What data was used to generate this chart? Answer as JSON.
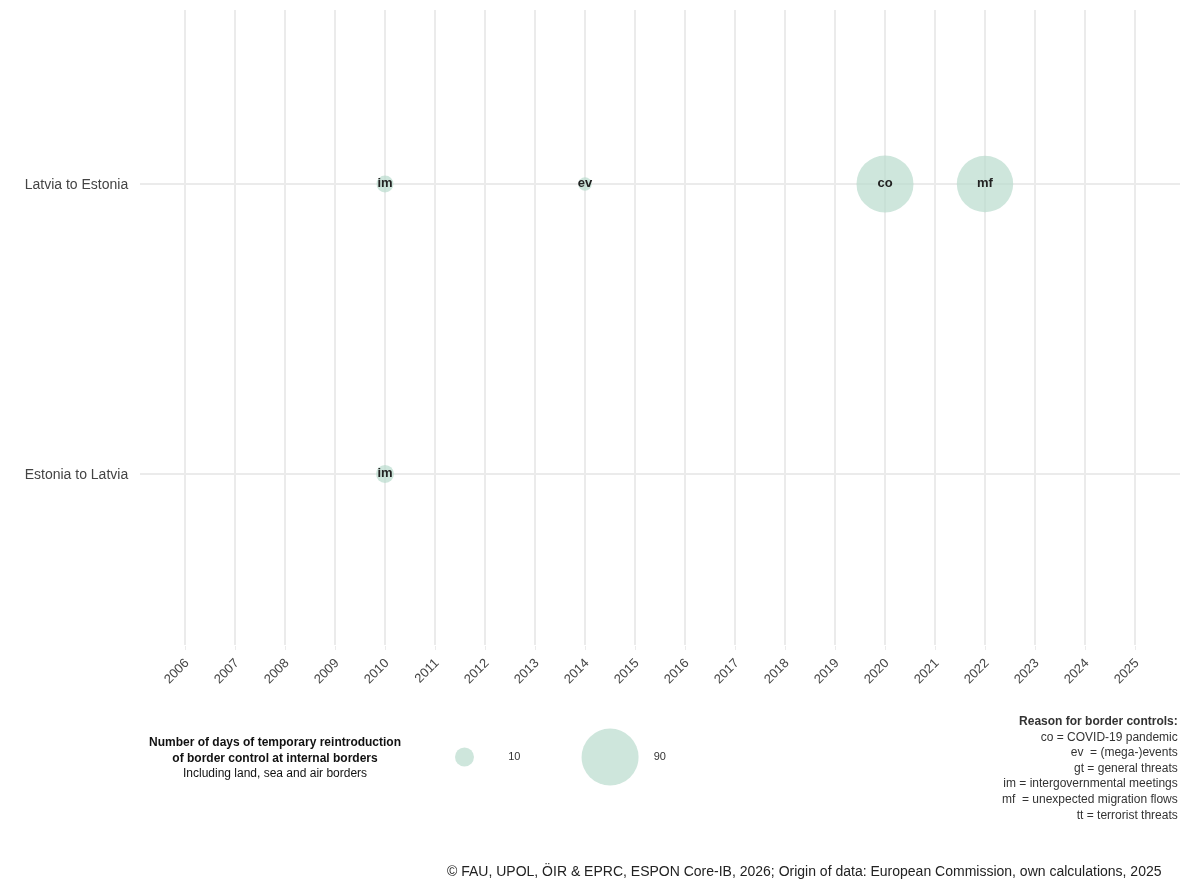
{
  "chart_data": {
    "type": "bubble",
    "orientation": "horizontal",
    "categories": [
      "Latvia to Estonia",
      "Estonia to Latvia"
    ],
    "series": [
      {
        "color": "#b9dccd",
        "values": [
          2010,
          2010
        ],
        "sizes": [
          8,
          9
        ],
        "value_labels": [
          "im",
          "im"
        ]
      },
      {
        "color": "#b9dccd",
        "values": [
          2014,
          null
        ],
        "sizes": [
          5,
          null
        ],
        "value_labels": [
          "ev",
          null
        ]
      },
      {
        "color": "#b9dccd",
        "values": [
          2020,
          null
        ],
        "sizes": [
          90,
          null
        ],
        "value_labels": [
          "co",
          null
        ]
      },
      {
        "color": "#b9dccd",
        "values": [
          2022,
          null
        ],
        "sizes": [
          88,
          null
        ],
        "value_labels": [
          "mf",
          null
        ]
      }
    ],
    "xlim": [
      2005.1,
      2025.9
    ],
    "xticks": [
      2006,
      2007,
      2008,
      2009,
      2010,
      2011,
      2012,
      2013,
      2014,
      2015,
      2016,
      2017,
      2018,
      2019,
      2020,
      2021,
      2022,
      2023,
      2024,
      2025
    ],
    "size_legend": [
      10,
      90
    ],
    "legend_title": "Number of days of temporary reintroduction\nof border control at internal borders\nIncluding land, sea and air borders",
    "grid": true,
    "annotations": [
      "Reason for border controls:\nco = COVID-19 pandemic\nev  = (mega-)events\ngt = general threats\nim = intergovernmental meetings\nmf  = unexpected migration flows\ntt = terrorist threats",
      "© FAU, UPOL, ÖIR & EPRC, ESPON Core-IB, 2026; Origin of data: European Commission, own calculations, 2025"
    ]
  }
}
